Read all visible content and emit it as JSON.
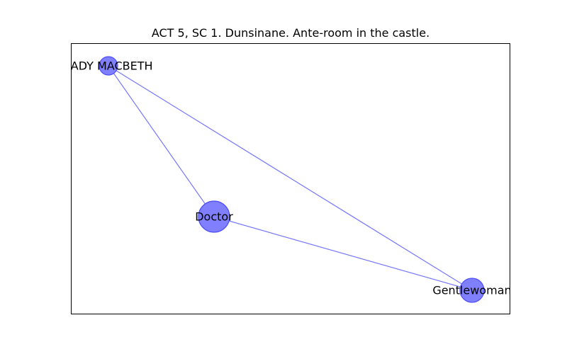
{
  "title": "ACT 5, SC 1. Dunsinane. Ante-room in the castle.",
  "colors": {
    "node_fill": "#8080ff",
    "node_stroke": "#4d4dff",
    "edge": "#7777ff",
    "frame": "#000000",
    "text": "#000000"
  },
  "network": {
    "nodes": [
      {
        "id": "lady",
        "label": "LADY MACBETH",
        "weight": 1
      },
      {
        "id": "doctor",
        "label": "Doctor",
        "weight": 3
      },
      {
        "id": "gentlewoman",
        "label": "Gentlewoman",
        "weight": 2
      }
    ],
    "edges": [
      {
        "source": "lady",
        "target": "doctor"
      },
      {
        "source": "lady",
        "target": "gentlewoman"
      },
      {
        "source": "doctor",
        "target": "gentlewoman"
      }
    ]
  }
}
